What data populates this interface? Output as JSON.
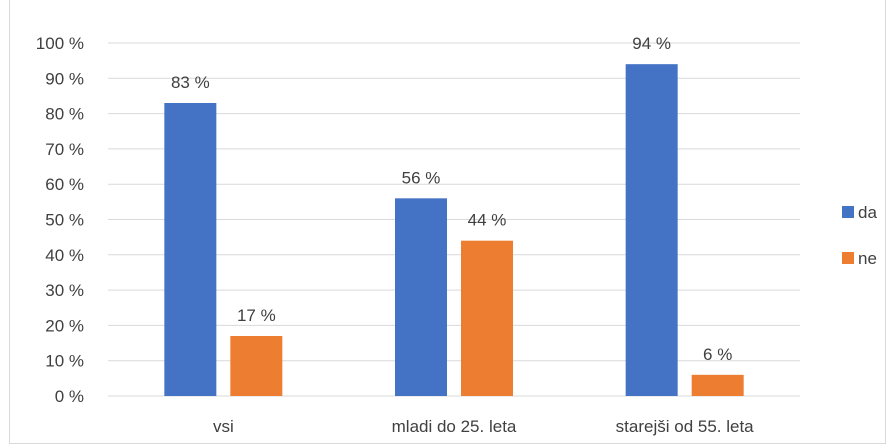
{
  "chart_data": {
    "type": "bar",
    "categories": [
      "vsi",
      "mladi do 25. leta",
      "starejši od 55. leta"
    ],
    "series": [
      {
        "name": "da",
        "values": [
          83,
          56,
          94
        ],
        "color": "#4472c4"
      },
      {
        "name": "ne",
        "values": [
          17,
          44,
          6
        ],
        "color": "#ed7d31"
      }
    ],
    "data_labels": [
      [
        "83 %",
        "56 %",
        "94 %"
      ],
      [
        "17 %",
        "44 %",
        "6 %"
      ]
    ],
    "ylim": [
      0,
      100
    ],
    "y_ticks": [
      0,
      10,
      20,
      30,
      40,
      50,
      60,
      70,
      80,
      90,
      100
    ],
    "y_tick_labels": [
      "0 %",
      "10 %",
      "20 %",
      "30 %",
      "40 %",
      "50 %",
      "60 %",
      "70 %",
      "80 %",
      "90 %",
      "100 %"
    ],
    "grid": true,
    "legend": "right",
    "xlabel": "",
    "ylabel": ""
  }
}
